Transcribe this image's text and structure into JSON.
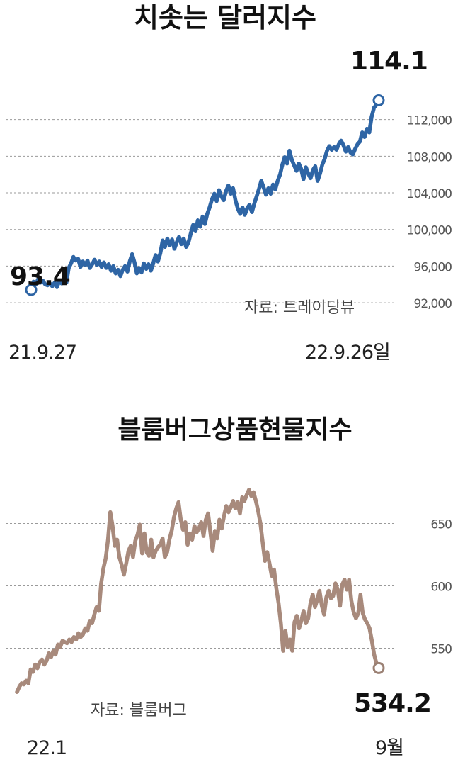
{
  "chart_data": [
    {
      "type": "line",
      "title": "치솟는 달러지수",
      "yticks": [
        "112,000",
        "108,000",
        "104,000",
        "100,000",
        "96,000",
        "92,000"
      ],
      "ytick_values": [
        112,
        108,
        104,
        100,
        96,
        92
      ],
      "ylim": [
        91,
        116
      ],
      "x_start_label": "21.9.27",
      "x_end_label": "22.9.26일",
      "start_value": 93.4,
      "end_value": 114.1,
      "start_label": "93.4",
      "end_label": "114.1",
      "source": "자료: 트레이딩뷰",
      "color": "#2e65a5",
      "series": [
        {
          "values": [
            93.4,
            94.3,
            94.0,
            94.6,
            94.2,
            94.4,
            94.0,
            93.9,
            94.1,
            93.8,
            94.2,
            93.7,
            94.4,
            94.1,
            94.6,
            94.2,
            95.8,
            96.3,
            97.0,
            96.6,
            96.8,
            95.9,
            96.5,
            96.1,
            96.6,
            95.8,
            96.2,
            96.7,
            96.1,
            96.5,
            95.9,
            96.4,
            95.8,
            96.2,
            95.5,
            96.0,
            95.2,
            95.6,
            94.9,
            95.6,
            96.0,
            95.4,
            96.5,
            97.3,
            96.4,
            95.2,
            95.8,
            95.3,
            96.3,
            95.7,
            96.2,
            95.5,
            96.3,
            97.2,
            96.5,
            97.4,
            98.8,
            98.1,
            99.0,
            98.3,
            98.9,
            97.9,
            98.6,
            99.2,
            98.4,
            99.0,
            98.1,
            98.6,
            99.6,
            100.5,
            99.8,
            101.0,
            100.3,
            101.4,
            100.6,
            101.7,
            102.4,
            103.3,
            103.9,
            103.1,
            104.3,
            103.6,
            103.2,
            104.2,
            104.8,
            103.9,
            104.5,
            103.2,
            102.3,
            101.7,
            102.4,
            101.6,
            102.3,
            102.7,
            101.9,
            102.8,
            103.6,
            104.4,
            105.3,
            104.6,
            103.8,
            104.5,
            103.9,
            104.9,
            104.4,
            105.3,
            106.0,
            107.1,
            107.9,
            107.2,
            108.6,
            107.6,
            107.0,
            106.4,
            107.2,
            106.6,
            105.5,
            106.8,
            106.1,
            105.6,
            106.5,
            106.9,
            105.3,
            106.1,
            107.1,
            107.7,
            108.6,
            109.1,
            108.7,
            109.0,
            108.7,
            109.3,
            109.7,
            109.2,
            108.5,
            109.0,
            108.4,
            108.2,
            108.8,
            109.3,
            109.6,
            110.6,
            110.1,
            111.0,
            110.6,
            112.3,
            113.3,
            113.6,
            114.1
          ]
        }
      ]
    },
    {
      "type": "line",
      "title": "블룸버그상품현물지수",
      "yticks": [
        "650",
        "600",
        "550"
      ],
      "ytick_values": [
        650,
        600,
        550
      ],
      "ylim": [
        510,
        690
      ],
      "x_start_label": "22.1",
      "x_end_label": "9월",
      "end_value": 534.2,
      "end_label": "534.2",
      "source": "자료: 블룸버그",
      "color": "#a88a7c",
      "series": [
        {
          "values": [
            515,
            519,
            522,
            521,
            524,
            522,
            533,
            531,
            537,
            534,
            539,
            541,
            537,
            540,
            546,
            543,
            548,
            545,
            553,
            551,
            556,
            555,
            554,
            557,
            555,
            559,
            557,
            562,
            559,
            561,
            566,
            564,
            572,
            570,
            577,
            583,
            580,
            602,
            614,
            622,
            637,
            659,
            648,
            632,
            637,
            623,
            617,
            609,
            618,
            628,
            632,
            623,
            636,
            641,
            649,
            626,
            642,
            627,
            624,
            637,
            623,
            628,
            631,
            633,
            638,
            623,
            627,
            637,
            644,
            655,
            662,
            667,
            653,
            645,
            651,
            633,
            642,
            637,
            648,
            643,
            646,
            651,
            640,
            653,
            658,
            643,
            628,
            644,
            638,
            653,
            646,
            656,
            664,
            659,
            663,
            668,
            662,
            667,
            658,
            671,
            668,
            673,
            677,
            672,
            675,
            668,
            660,
            650,
            635,
            620,
            627,
            618,
            608,
            613,
            598,
            586,
            570,
            548,
            564,
            551,
            557,
            548,
            571,
            576,
            566,
            572,
            580,
            570,
            574,
            586,
            593,
            583,
            589,
            596,
            584,
            577,
            591,
            596,
            590,
            592,
            602,
            597,
            584,
            601,
            605,
            597,
            605,
            588,
            579,
            574,
            578,
            593,
            578,
            573,
            570,
            566,
            556,
            545,
            538,
            534.2
          ]
        }
      ]
    }
  ]
}
